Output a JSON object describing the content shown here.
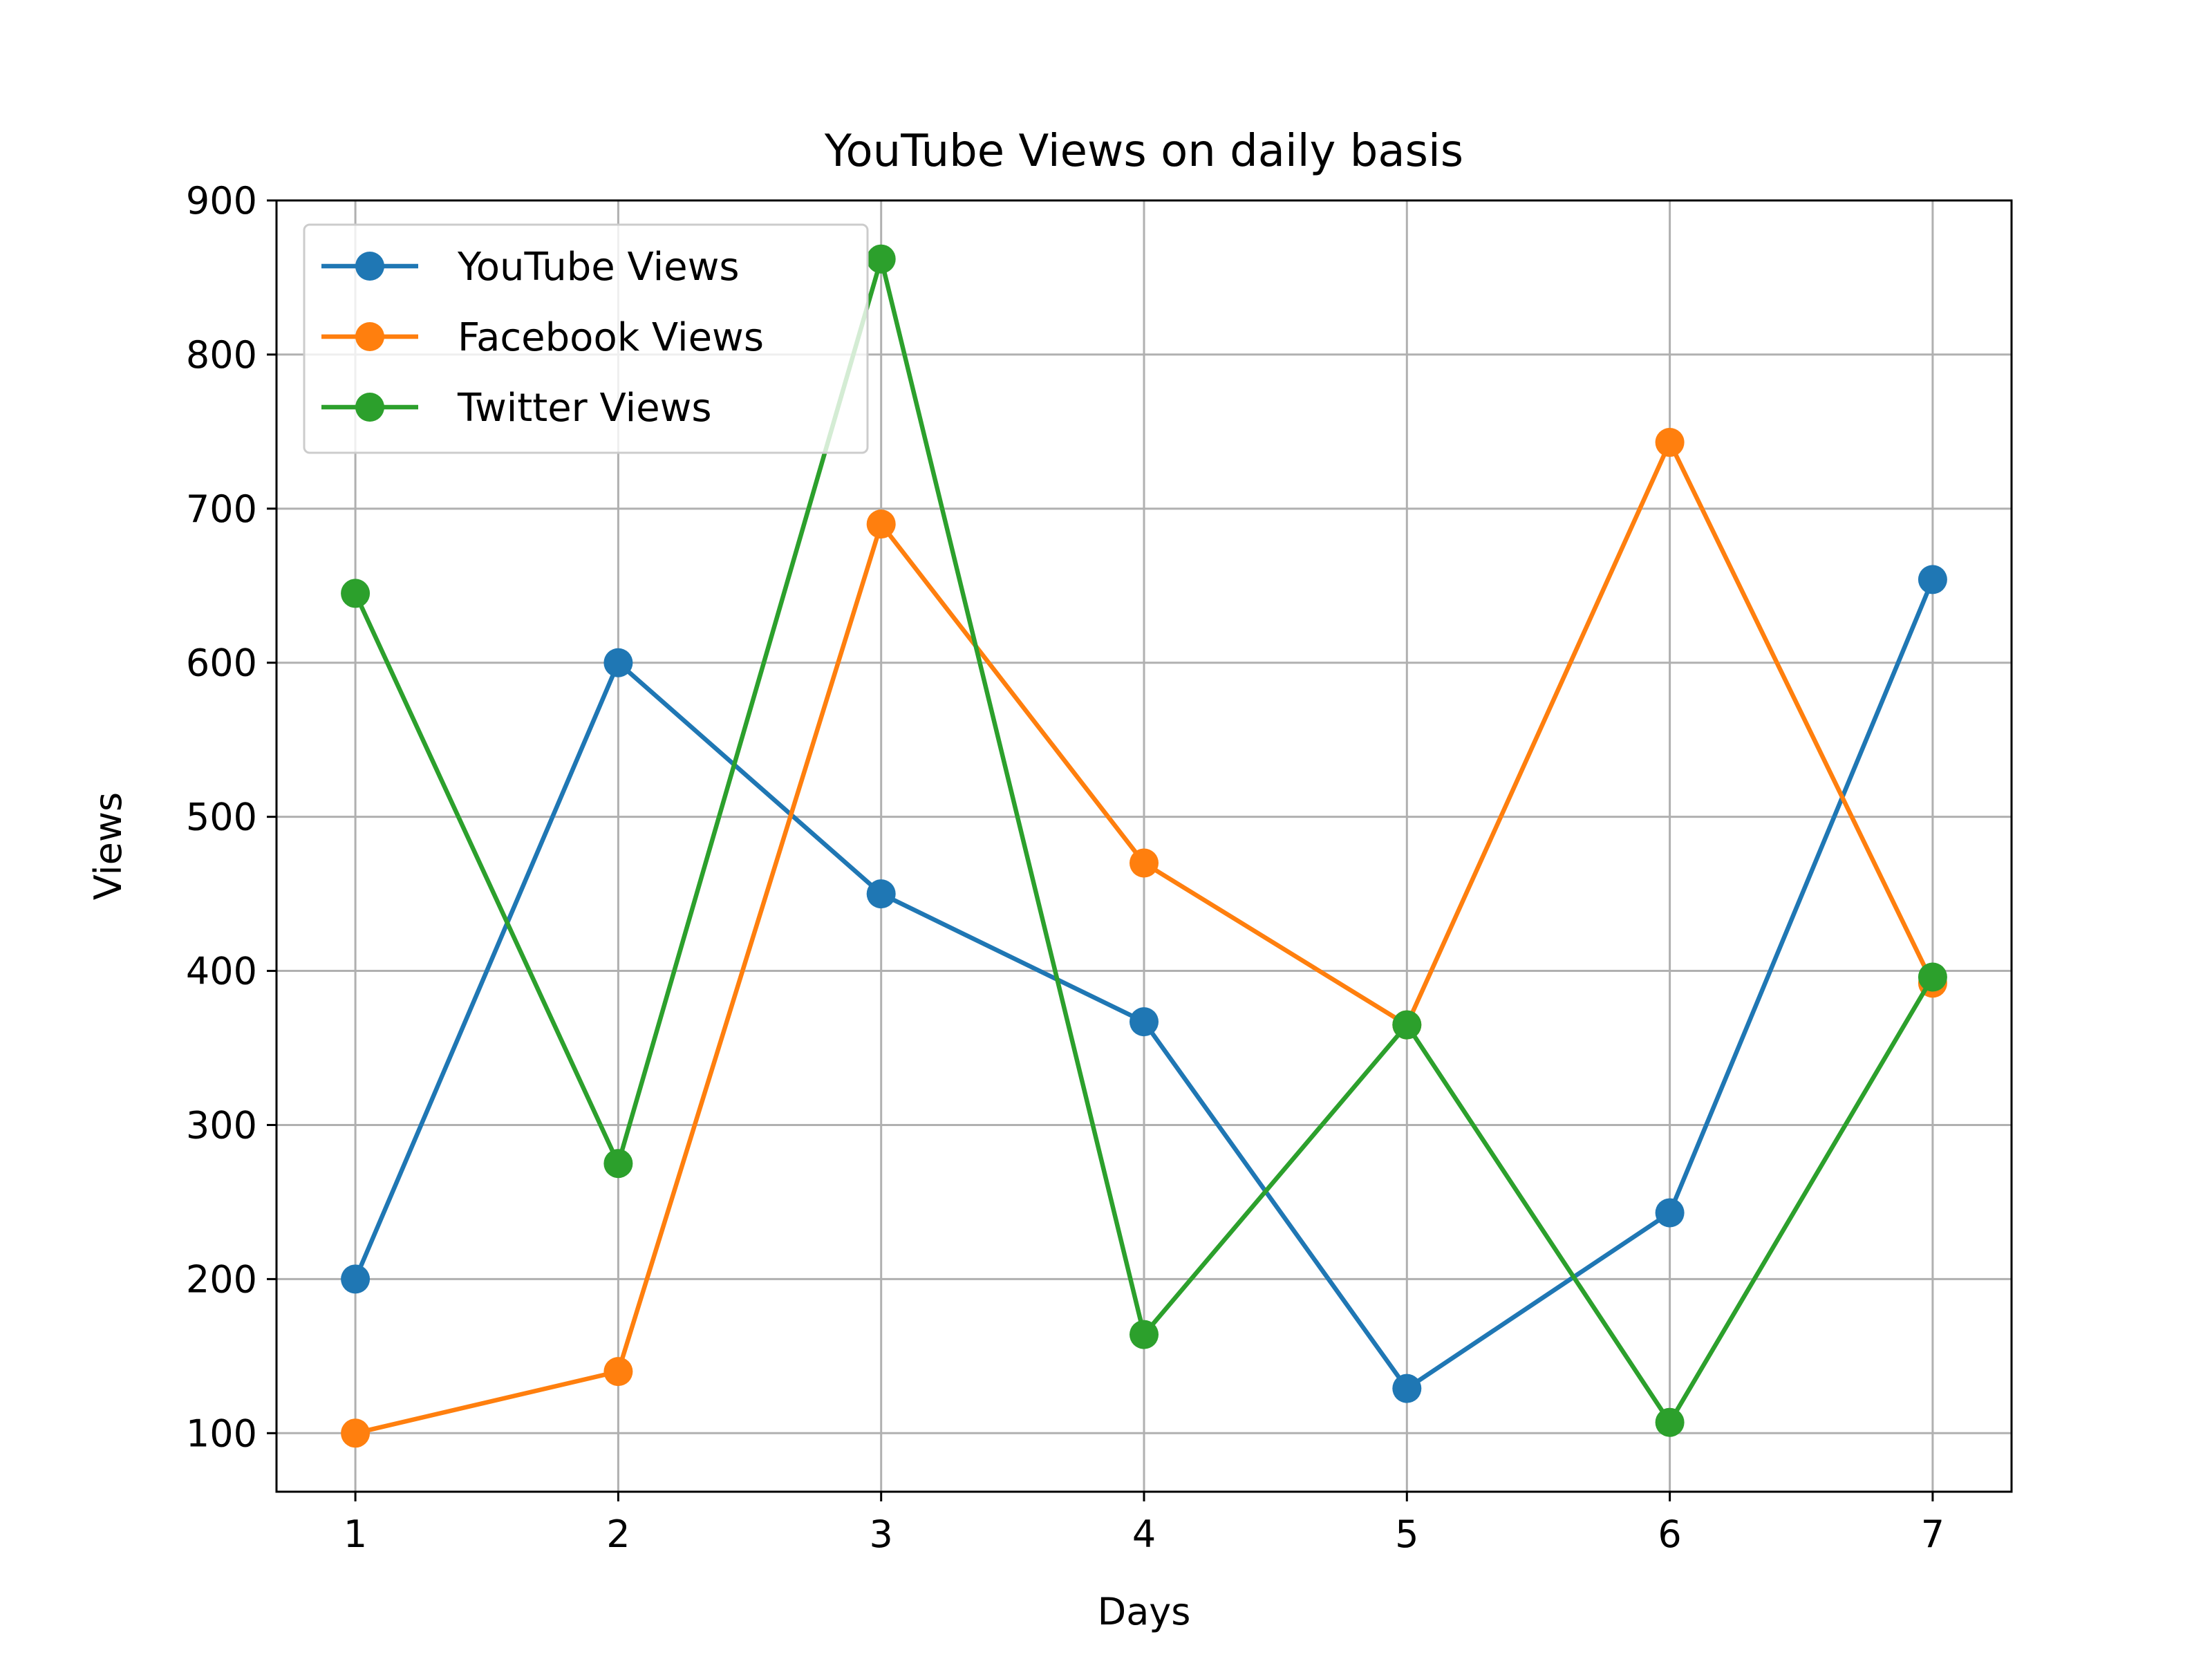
{
  "chart_data": {
    "type": "line",
    "title": "YouTube Views on daily basis",
    "xlabel": "Days",
    "ylabel": "Views",
    "x": [
      1,
      2,
      3,
      4,
      5,
      6,
      7
    ],
    "xlim": [
      0.7,
      7.3
    ],
    "ylim": [
      62,
      900
    ],
    "xticks": [
      1,
      2,
      3,
      4,
      5,
      6,
      7
    ],
    "yticks": [
      100,
      200,
      300,
      400,
      500,
      600,
      700,
      800,
      900
    ],
    "grid": true,
    "legend_position": "upper-left",
    "series": [
      {
        "name": "YouTube Views",
        "color": "#1f77b4",
        "values": [
          200,
          600,
          450,
          367,
          129,
          243,
          654
        ]
      },
      {
        "name": "Facebook Views",
        "color": "#ff7f0e",
        "values": [
          100,
          140,
          690,
          470,
          365,
          743,
          392
        ]
      },
      {
        "name": "Twitter Views",
        "color": "#2ca02c",
        "values": [
          645,
          275,
          862,
          164,
          365,
          107,
          396
        ]
      }
    ]
  }
}
